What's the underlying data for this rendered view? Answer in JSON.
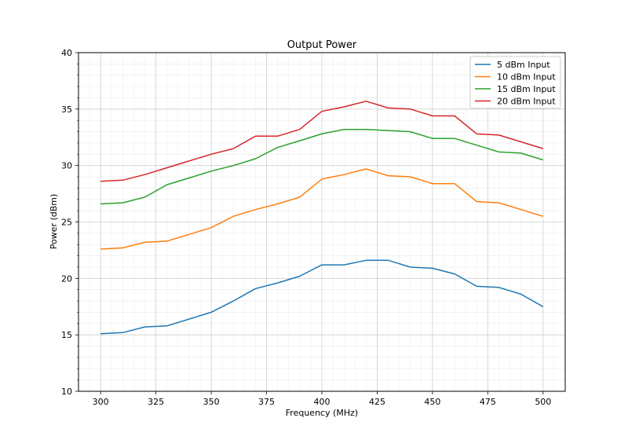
{
  "chart_data": {
    "type": "line",
    "title": "Output Power",
    "xlabel": "Frequency (MHz)",
    "ylabel": "Power (dBm)",
    "xlim": [
      290,
      510
    ],
    "ylim": [
      10,
      40
    ],
    "x_ticks": [
      300,
      325,
      350,
      375,
      400,
      425,
      450,
      475,
      500
    ],
    "y_ticks": [
      10,
      15,
      20,
      25,
      30,
      35,
      40
    ],
    "grid": true,
    "legend_position": "top-right",
    "x": [
      300,
      310,
      320,
      330,
      340,
      350,
      360,
      370,
      380,
      390,
      400,
      410,
      420,
      430,
      440,
      450,
      460,
      470,
      480,
      490,
      500
    ],
    "series": [
      {
        "name": "5 dBm Input",
        "color": "#1f77b4",
        "values": [
          15.1,
          15.2,
          15.7,
          15.8,
          16.4,
          17.0,
          18.0,
          19.1,
          19.6,
          20.2,
          21.2,
          21.2,
          21.6,
          21.6,
          21.0,
          20.9,
          20.4,
          19.3,
          19.2,
          18.6,
          17.5
        ]
      },
      {
        "name": "10 dBm Input",
        "color": "#ff7f0e",
        "values": [
          22.6,
          22.7,
          23.2,
          23.3,
          23.9,
          24.5,
          25.5,
          26.1,
          26.6,
          27.2,
          28.8,
          29.2,
          29.7,
          29.1,
          29.0,
          28.4,
          28.4,
          26.8,
          26.7,
          26.1,
          25.5
        ]
      },
      {
        "name": "15 dBm Input",
        "color": "#2ca02c",
        "values": [
          26.6,
          26.7,
          27.2,
          28.3,
          28.9,
          29.5,
          30.0,
          30.6,
          31.6,
          32.2,
          32.8,
          33.2,
          33.2,
          33.1,
          33.0,
          32.4,
          32.4,
          31.8,
          31.2,
          31.1,
          30.5
        ]
      },
      {
        "name": "20 dBm Input",
        "color": "#d62728",
        "values": [
          28.6,
          28.7,
          29.2,
          29.8,
          30.4,
          31.0,
          31.5,
          32.6,
          32.6,
          33.2,
          34.8,
          35.2,
          35.7,
          35.1,
          35.0,
          34.4,
          34.4,
          32.8,
          32.7,
          32.1,
          31.5
        ]
      }
    ]
  }
}
